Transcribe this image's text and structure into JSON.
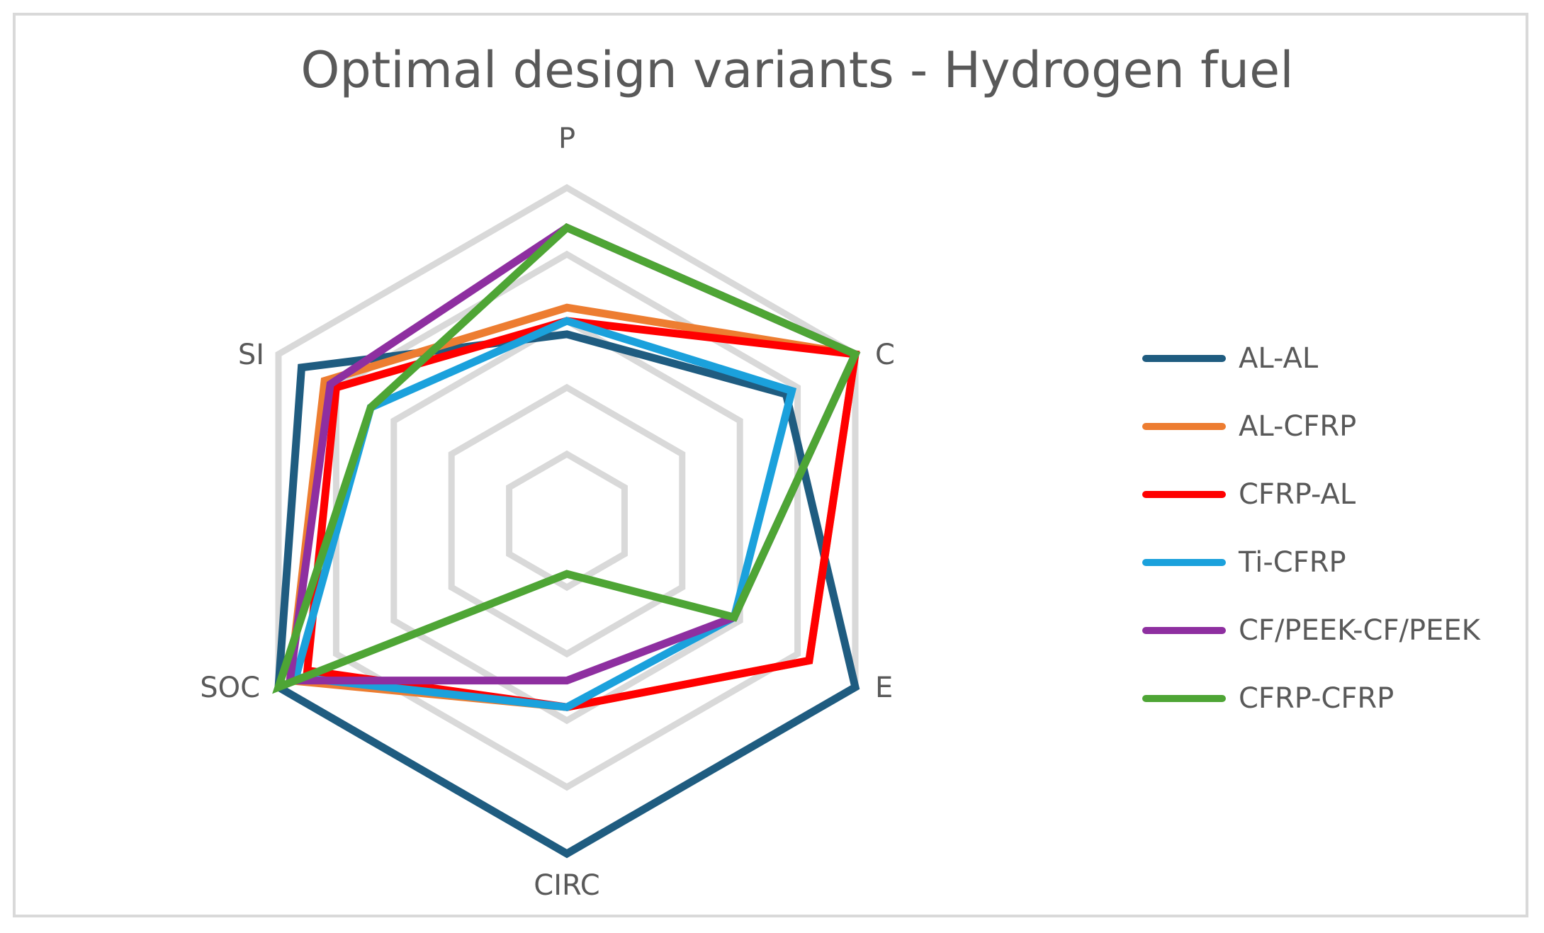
{
  "chart_data": {
    "type": "radar",
    "title": "Optimal design variants - Hydrogen fuel",
    "axes": [
      "P",
      "C",
      "E",
      "CIRC",
      "SOC",
      "SI"
    ],
    "range": [
      0,
      5
    ],
    "gridlines": 5,
    "legend_position": "right",
    "series": [
      {
        "name": "AL-AL",
        "color": "#1f5c80",
        "values": [
          2.8,
          3.8,
          5.0,
          5.0,
          5.0,
          4.6
        ]
      },
      {
        "name": "AL-CFRP",
        "color": "#ed7d31",
        "values": [
          3.2,
          5.0,
          4.2,
          2.8,
          4.8,
          4.2
        ]
      },
      {
        "name": "CFRP-AL",
        "color": "#ff0000",
        "values": [
          3.0,
          5.0,
          4.2,
          2.8,
          4.5,
          4.0
        ]
      },
      {
        "name": "Ti-CFRP",
        "color": "#1ba1dc",
        "values": [
          3.0,
          3.9,
          2.9,
          2.8,
          4.7,
          3.4
        ]
      },
      {
        "name": "CF/PEEK-CF/PEEK",
        "color": "#8e2fa0",
        "values": [
          4.4,
          5.0,
          2.9,
          2.4,
          4.8,
          4.1
        ]
      },
      {
        "name": "CFRP-CFRP",
        "color": "#4ea535",
        "values": [
          4.4,
          5.0,
          2.9,
          0.8,
          5.0,
          3.4
        ]
      }
    ]
  }
}
